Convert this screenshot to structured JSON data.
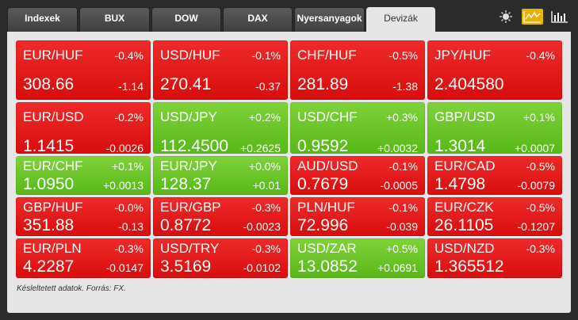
{
  "tabs": [
    {
      "label": "Indexek",
      "active": false
    },
    {
      "label": "BUX",
      "active": false
    },
    {
      "label": "DOW",
      "active": false
    },
    {
      "label": "DAX",
      "active": false
    },
    {
      "label": "Nyersanyagok",
      "active": false
    },
    {
      "label": "Devizák",
      "active": true
    }
  ],
  "controls": {
    "icons": [
      "sun-icon",
      "line-chart-icon",
      "bar-chart-icon"
    ],
    "accent_color": "#e8b300"
  },
  "colors": {
    "down": "#e41a1a",
    "up": "#6cc52a"
  },
  "rows": [
    [
      {
        "symbol": "EUR/HUF",
        "pct": "-0.4%",
        "value": "308.66",
        "change": "-1.14",
        "trend": "down"
      },
      {
        "symbol": "USD/HUF",
        "pct": "-0.1%",
        "value": "270.41",
        "change": "-0.37",
        "trend": "down"
      },
      {
        "symbol": "CHF/HUF",
        "pct": "-0.5%",
        "value": "281.89",
        "change": "-1.38",
        "trend": "down"
      },
      {
        "symbol": "JPY/HUF",
        "pct": "-0.4%",
        "value": "2.404580",
        "change": "",
        "trend": "down"
      }
    ],
    [
      {
        "symbol": "EUR/USD",
        "pct": "-0.2%",
        "value": "1.1415",
        "change": "-0.0026",
        "trend": "down"
      },
      {
        "symbol": "USD/JPY",
        "pct": "+0.2%",
        "value": "112.4500",
        "change": "+0.2625",
        "trend": "up"
      },
      {
        "symbol": "USD/CHF",
        "pct": "+0.3%",
        "value": "0.9592",
        "change": "+0.0032",
        "trend": "up"
      },
      {
        "symbol": "GBP/USD",
        "pct": "+0.1%",
        "value": "1.3014",
        "change": "+0.0007",
        "trend": "up"
      }
    ],
    [
      {
        "symbol": "EUR/CHF",
        "pct": "+0.1%",
        "value": "1.0950",
        "change": "+0.0013",
        "trend": "up"
      },
      {
        "symbol": "EUR/JPY",
        "pct": "+0.0%",
        "value": "128.37",
        "change": "+0.01",
        "trend": "up"
      },
      {
        "symbol": "AUD/USD",
        "pct": "-0.1%",
        "value": "0.7679",
        "change": "-0.0005",
        "trend": "down"
      },
      {
        "symbol": "EUR/CAD",
        "pct": "-0.5%",
        "value": "1.4798",
        "change": "-0.0079",
        "trend": "down"
      }
    ],
    [
      {
        "symbol": "GBP/HUF",
        "pct": "-0.0%",
        "value": "351.88",
        "change": "-0.13",
        "trend": "down"
      },
      {
        "symbol": "EUR/GBP",
        "pct": "-0.3%",
        "value": "0.8772",
        "change": "-0.0023",
        "trend": "down"
      },
      {
        "symbol": "PLN/HUF",
        "pct": "-0.1%",
        "value": "72.996",
        "change": "-0.039",
        "trend": "down"
      },
      {
        "symbol": "EUR/CZK",
        "pct": "-0.5%",
        "value": "26.1105",
        "change": "-0.1207",
        "trend": "down"
      }
    ],
    [
      {
        "symbol": "EUR/PLN",
        "pct": "-0.3%",
        "value": "4.2287",
        "change": "-0.0147",
        "trend": "down"
      },
      {
        "symbol": "USD/TRY",
        "pct": "-0.3%",
        "value": "3.5169",
        "change": "-0.0102",
        "trend": "down"
      },
      {
        "symbol": "USD/ZAR",
        "pct": "+0.5%",
        "value": "13.0852",
        "change": "+0.0691",
        "trend": "up"
      },
      {
        "symbol": "USD/NZD",
        "pct": "-0.3%",
        "value": "1.365512",
        "change": "",
        "trend": "down"
      }
    ]
  ],
  "footnote": "Késleltetett adatok. Forrás: FX."
}
